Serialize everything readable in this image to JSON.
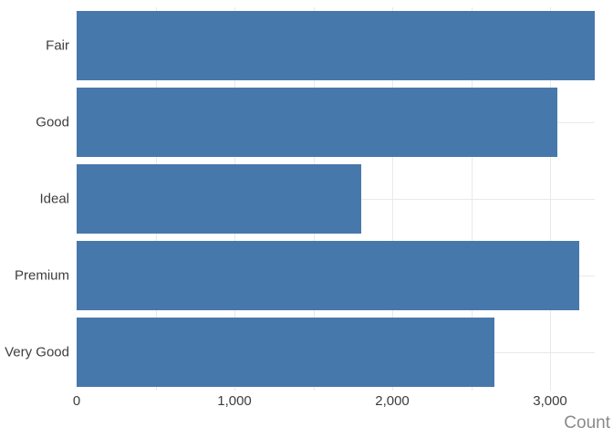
{
  "chart_data": {
    "type": "bar",
    "orientation": "horizontal",
    "title": "",
    "xlabel": "Count",
    "ylabel": "",
    "categories": [
      "Fair",
      "Good",
      "Ideal",
      "Premium",
      "Very Good"
    ],
    "values": [
      3283,
      3046,
      1803,
      3185,
      2647
    ],
    "xlim": [
      0,
      3283
    ],
    "x_ticks": [
      {
        "value": 0,
        "label": "0"
      },
      {
        "value": 1000,
        "label": "1,000"
      },
      {
        "value": 2000,
        "label": "2,000"
      },
      {
        "value": 3000,
        "label": "3,000"
      }
    ],
    "x_gridline_values": [
      500,
      1000,
      1500,
      2000,
      2500,
      3000
    ],
    "grid": true,
    "legend": "none",
    "colors": {
      "bar": "#4778ab",
      "gridline": "#e9e9e9",
      "tick_label": "#3d3d3d",
      "axis_title": "#8a8a8a",
      "background": "#ffffff"
    }
  }
}
